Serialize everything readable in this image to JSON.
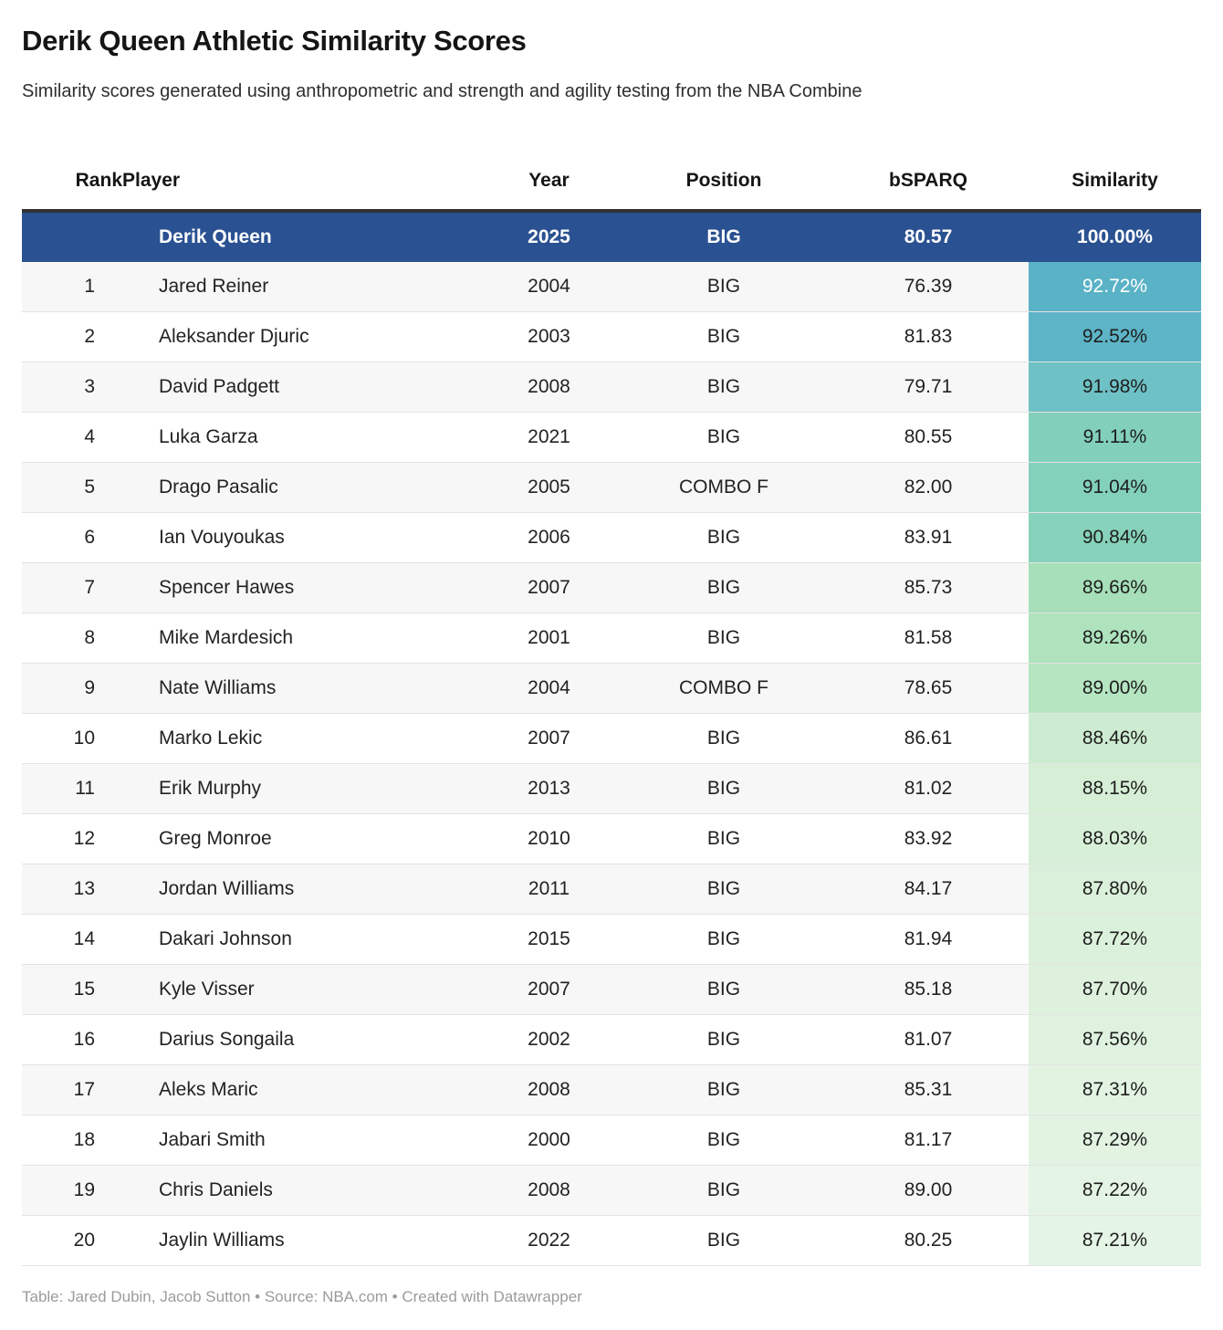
{
  "chart_data": {
    "type": "table",
    "title": "Derik Queen Athletic Similarity Scores",
    "subtitle": "Similarity scores generated using anthropometric and strength and agility testing from the NBA Combine",
    "columns": [
      "Rank",
      "Player",
      "Year",
      "Position",
      "bSPARQ",
      "Similarity"
    ],
    "rows": [
      {
        "rank": "",
        "player": "Derik Queen",
        "year": "2025",
        "position": "BIG",
        "bsparq": "80.57",
        "similarity": "100.00%",
        "highlight": true,
        "sim_bg": null,
        "sim_color": "#ffffff"
      },
      {
        "rank": "1",
        "player": "Jared Reiner",
        "year": "2004",
        "position": "BIG",
        "bsparq": "76.39",
        "similarity": "92.72%",
        "highlight": false,
        "sim_bg": "#5ab2c6",
        "sim_color": "#ffffff"
      },
      {
        "rank": "2",
        "player": "Aleksander Djuric",
        "year": "2003",
        "position": "BIG",
        "bsparq": "81.83",
        "similarity": "92.52%",
        "highlight": false,
        "sim_bg": "#5db4c7",
        "sim_color": "#1d1d1d"
      },
      {
        "rank": "3",
        "player": "David Padgett",
        "year": "2008",
        "position": "BIG",
        "bsparq": "79.71",
        "similarity": "91.98%",
        "highlight": false,
        "sim_bg": "#6ec1c5",
        "sim_color": "#1d1d1d"
      },
      {
        "rank": "4",
        "player": "Luka Garza",
        "year": "2021",
        "position": "BIG",
        "bsparq": "80.55",
        "similarity": "91.11%",
        "highlight": false,
        "sim_bg": "#82d0bb",
        "sim_color": "#1d1d1d"
      },
      {
        "rank": "5",
        "player": "Drago Pasalic",
        "year": "2005",
        "position": "COMBO F",
        "bsparq": "82.00",
        "similarity": "91.04%",
        "highlight": false,
        "sim_bg": "#83d1bb",
        "sim_color": "#1d1d1d"
      },
      {
        "rank": "6",
        "player": "Ian Vouyoukas",
        "year": "2006",
        "position": "BIG",
        "bsparq": "83.91",
        "similarity": "90.84%",
        "highlight": false,
        "sim_bg": "#86d2ba",
        "sim_color": "#1d1d1d"
      },
      {
        "rank": "7",
        "player": "Spencer Hawes",
        "year": "2007",
        "position": "BIG",
        "bsparq": "85.73",
        "similarity": "89.66%",
        "highlight": false,
        "sim_bg": "#a6dfb9",
        "sim_color": "#1d1d1d"
      },
      {
        "rank": "8",
        "player": "Mike Mardesich",
        "year": "2001",
        "position": "BIG",
        "bsparq": "81.58",
        "similarity": "89.26%",
        "highlight": false,
        "sim_bg": "#aee3bd",
        "sim_color": "#1d1d1d"
      },
      {
        "rank": "9",
        "player": "Nate Williams",
        "year": "2004",
        "position": "COMBO F",
        "bsparq": "78.65",
        "similarity": "89.00%",
        "highlight": false,
        "sim_bg": "#b5e5c1",
        "sim_color": "#1d1d1d"
      },
      {
        "rank": "10",
        "player": "Marko Lekic",
        "year": "2007",
        "position": "BIG",
        "bsparq": "86.61",
        "similarity": "88.46%",
        "highlight": false,
        "sim_bg": "#cdebd0",
        "sim_color": "#1d1d1d"
      },
      {
        "rank": "11",
        "player": "Erik Murphy",
        "year": "2013",
        "position": "BIG",
        "bsparq": "81.02",
        "similarity": "88.15%",
        "highlight": false,
        "sim_bg": "#d5eed5",
        "sim_color": "#1d1d1d"
      },
      {
        "rank": "12",
        "player": "Greg Monroe",
        "year": "2010",
        "position": "BIG",
        "bsparq": "83.92",
        "similarity": "88.03%",
        "highlight": false,
        "sim_bg": "#d7efd7",
        "sim_color": "#1d1d1d"
      },
      {
        "rank": "13",
        "player": "Jordan Williams",
        "year": "2011",
        "position": "BIG",
        "bsparq": "84.17",
        "similarity": "87.80%",
        "highlight": false,
        "sim_bg": "#daf0da",
        "sim_color": "#1d1d1d"
      },
      {
        "rank": "14",
        "player": "Dakari Johnson",
        "year": "2015",
        "position": "BIG",
        "bsparq": "81.94",
        "similarity": "87.72%",
        "highlight": false,
        "sim_bg": "#dcf1dc",
        "sim_color": "#1d1d1d"
      },
      {
        "rank": "15",
        "player": "Kyle Visser",
        "year": "2007",
        "position": "BIG",
        "bsparq": "85.18",
        "similarity": "87.70%",
        "highlight": false,
        "sim_bg": "#ddf1dd",
        "sim_color": "#1d1d1d"
      },
      {
        "rank": "16",
        "player": "Darius Songaila",
        "year": "2002",
        "position": "BIG",
        "bsparq": "81.07",
        "similarity": "87.56%",
        "highlight": false,
        "sim_bg": "#dff2df",
        "sim_color": "#1d1d1d"
      },
      {
        "rank": "17",
        "player": "Aleks Maric",
        "year": "2008",
        "position": "BIG",
        "bsparq": "85.31",
        "similarity": "87.31%",
        "highlight": false,
        "sim_bg": "#e2f3e2",
        "sim_color": "#1d1d1d"
      },
      {
        "rank": "18",
        "player": "Jabari Smith",
        "year": "2000",
        "position": "BIG",
        "bsparq": "81.17",
        "similarity": "87.29%",
        "highlight": false,
        "sim_bg": "#e2f3e2",
        "sim_color": "#1d1d1d"
      },
      {
        "rank": "19",
        "player": "Chris Daniels",
        "year": "2008",
        "position": "BIG",
        "bsparq": "89.00",
        "similarity": "87.22%",
        "highlight": false,
        "sim_bg": "#e4f4e4",
        "sim_color": "#1d1d1d"
      },
      {
        "rank": "20",
        "player": "Jaylin Williams",
        "year": "2022",
        "position": "BIG",
        "bsparq": "80.25",
        "similarity": "87.21%",
        "highlight": false,
        "sim_bg": "#e4f4e5",
        "sim_color": "#1d1d1d"
      }
    ],
    "footer": "Table: Jared Dubin, Jacob Sutton • Source: NBA.com • Created with Datawrapper"
  },
  "colors": {
    "highlight_bg": "#2a5191",
    "stripe": "#f7f7f7",
    "header_border": "#333333",
    "row_border": "#e3e3e3",
    "text": "#222222",
    "footer_text": "#9b9b9b"
  }
}
